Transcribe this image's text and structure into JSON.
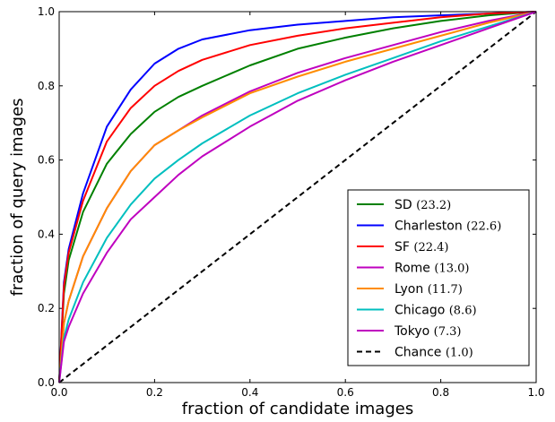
{
  "chart_data": {
    "type": "line",
    "xlabel": "fraction of candidate images",
    "ylabel": "fraction of query images",
    "xlim": [
      0,
      1
    ],
    "ylim": [
      0,
      1
    ],
    "xticks": [
      "0.0",
      "0.2",
      "0.4",
      "0.6",
      "0.8",
      "1.0"
    ],
    "yticks": [
      "0.0",
      "0.2",
      "0.4",
      "0.6",
      "0.8",
      "1.0"
    ],
    "grid": false,
    "legend_position": "lower-right",
    "x": [
      0,
      0.01,
      0.02,
      0.05,
      0.1,
      0.15,
      0.2,
      0.25,
      0.3,
      0.4,
      0.5,
      0.6,
      0.7,
      0.8,
      0.9,
      1.0
    ],
    "series": [
      {
        "name": "SD",
        "value": "(23.2)",
        "color": "#008000",
        "dash": "solid",
        "values": [
          0,
          0.24,
          0.33,
          0.46,
          0.59,
          0.67,
          0.73,
          0.77,
          0.8,
          0.855,
          0.9,
          0.93,
          0.955,
          0.975,
          0.99,
          1.0
        ]
      },
      {
        "name": "Charleston",
        "value": "(22.6)",
        "color": "#0000ff",
        "dash": "solid",
        "values": [
          0,
          0.27,
          0.36,
          0.51,
          0.69,
          0.79,
          0.86,
          0.9,
          0.925,
          0.95,
          0.965,
          0.975,
          0.985,
          0.99,
          0.995,
          1.0
        ]
      },
      {
        "name": "SF",
        "value": "(22.4)",
        "color": "#ff0000",
        "dash": "solid",
        "values": [
          0,
          0.26,
          0.35,
          0.49,
          0.65,
          0.74,
          0.8,
          0.84,
          0.87,
          0.91,
          0.935,
          0.955,
          0.97,
          0.985,
          0.995,
          1.0
        ]
      },
      {
        "name": "Rome",
        "value": "(13.0)",
        "color": "#bf00bf",
        "dash": "solid",
        "values": [
          0,
          0.16,
          0.22,
          0.34,
          0.47,
          0.57,
          0.64,
          0.68,
          0.72,
          0.785,
          0.835,
          0.875,
          0.91,
          0.945,
          0.975,
          1.0
        ]
      },
      {
        "name": "Lyon",
        "value": "(11.7)",
        "color": "#ff8c00",
        "dash": "solid",
        "values": [
          0,
          0.16,
          0.22,
          0.34,
          0.47,
          0.57,
          0.64,
          0.68,
          0.715,
          0.78,
          0.825,
          0.865,
          0.9,
          0.935,
          0.97,
          1.0
        ]
      },
      {
        "name": "Chicago",
        "value": "(8.6)",
        "color": "#00bfbf",
        "dash": "solid",
        "values": [
          0,
          0.12,
          0.17,
          0.27,
          0.39,
          0.48,
          0.55,
          0.6,
          0.645,
          0.72,
          0.78,
          0.83,
          0.875,
          0.92,
          0.96,
          1.0
        ]
      },
      {
        "name": "Tokyo",
        "value": "(7.3)",
        "color": "#bf00bf",
        "dash": "solid",
        "values": [
          0,
          0.11,
          0.15,
          0.24,
          0.35,
          0.44,
          0.5,
          0.56,
          0.61,
          0.69,
          0.76,
          0.815,
          0.865,
          0.91,
          0.955,
          1.0
        ]
      },
      {
        "name": "Chance",
        "value": "(1.0)",
        "color": "#000000",
        "dash": "dashed",
        "values": [
          0,
          0.01,
          0.02,
          0.05,
          0.1,
          0.15,
          0.2,
          0.25,
          0.3,
          0.4,
          0.5,
          0.6,
          0.7,
          0.8,
          0.9,
          1.0
        ]
      }
    ]
  }
}
